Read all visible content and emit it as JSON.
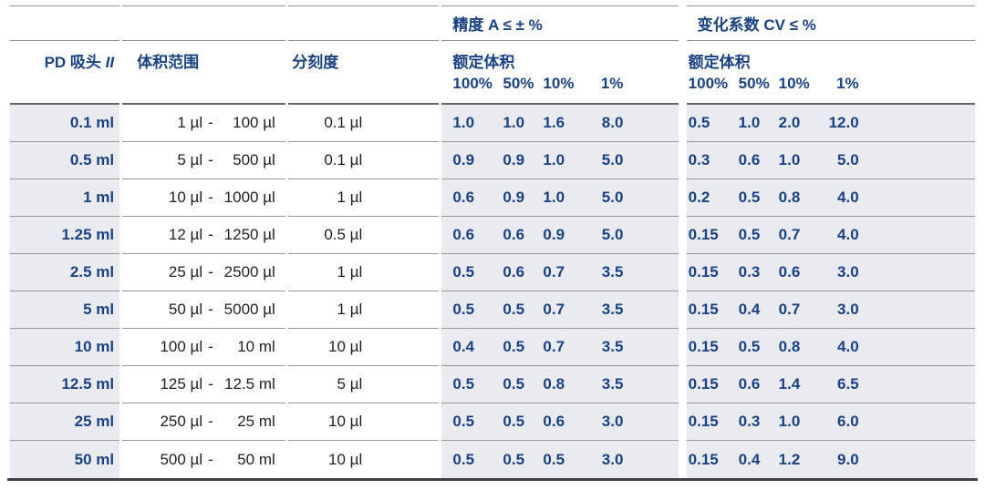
{
  "colors": {
    "navy": "#1a4282",
    "cell_gray": "#e9ebf0",
    "thin_line": "#94979c",
    "header_line": "#63666a",
    "bottom_line": "#3d4044"
  },
  "table": {
    "range_separator": "-",
    "header": {
      "precision_group": "精度 A ≤ ± %",
      "cv_group": "变化系数 CV ≤ %",
      "col_tip": "PD 吸头 ",
      "col_tip_suffix": "II",
      "col_range": "体积范围",
      "col_graduation": "分刻度",
      "rated_volume": "额定体积",
      "percent_labels": [
        "100%",
        "50%",
        "10%",
        "1%"
      ]
    },
    "rows": [
      {
        "tip": "0.1 ml",
        "range_low": "1 µl",
        "range_high": "100 µl",
        "graduation": "0.1 µl",
        "a": [
          "1.0",
          "1.0",
          "1.6",
          "8.0"
        ],
        "cv": [
          "0.5",
          "1.0",
          "2.0",
          "12.0"
        ]
      },
      {
        "tip": "0.5 ml",
        "range_low": "5 µl",
        "range_high": "500 µl",
        "graduation": "0.1 µl",
        "a": [
          "0.9",
          "0.9",
          "1.0",
          "5.0"
        ],
        "cv": [
          "0.3",
          "0.6",
          "1.0",
          "5.0"
        ]
      },
      {
        "tip": "1 ml",
        "range_low": "10 µl",
        "range_high": "1000 µl",
        "graduation": "1 µl",
        "a": [
          "0.6",
          "0.9",
          "1.0",
          "5.0"
        ],
        "cv": [
          "0.2",
          "0.5",
          "0.8",
          "4.0"
        ]
      },
      {
        "tip": "1.25 ml",
        "range_low": "12 µl",
        "range_high": "1250 µl",
        "graduation": "0.5 µl",
        "a": [
          "0.6",
          "0.6",
          "0.9",
          "5.0"
        ],
        "cv": [
          "0.15",
          "0.5",
          "0.7",
          "4.0"
        ]
      },
      {
        "tip": "2.5 ml",
        "range_low": "25 µl",
        "range_high": "2500 µl",
        "graduation": "1 µl",
        "a": [
          "0.5",
          "0.6",
          "0.7",
          "3.5"
        ],
        "cv": [
          "0.15",
          "0.3",
          "0.6",
          "3.0"
        ]
      },
      {
        "tip": "5 ml",
        "range_low": "50 µl",
        "range_high": "5000 µl",
        "graduation": "1 µl",
        "a": [
          "0.5",
          "0.5",
          "0.7",
          "3.5"
        ],
        "cv": [
          "0.15",
          "0.4",
          "0.7",
          "3.0"
        ]
      },
      {
        "tip": "10 ml",
        "range_low": "100 µl",
        "range_high": "10 ml",
        "graduation": "10 µl",
        "a": [
          "0.4",
          "0.5",
          "0.7",
          "3.5"
        ],
        "cv": [
          "0.15",
          "0.5",
          "0.8",
          "4.0"
        ]
      },
      {
        "tip": "12.5 ml",
        "range_low": "125 µl",
        "range_high": "12.5 ml",
        "graduation": "5 µl",
        "a": [
          "0.5",
          "0.5",
          "0.8",
          "3.5"
        ],
        "cv": [
          "0.15",
          "0.6",
          "1.4",
          "6.5"
        ]
      },
      {
        "tip": "25 ml",
        "range_low": "250 µl",
        "range_high": "25 ml",
        "graduation": "10 µl",
        "a": [
          "0.5",
          "0.5",
          "0.6",
          "3.0"
        ],
        "cv": [
          "0.15",
          "0.3",
          "1.0",
          "6.0"
        ]
      },
      {
        "tip": "50 ml",
        "range_low": "500 µl",
        "range_high": "50 ml",
        "graduation": "10 µl",
        "a": [
          "0.5",
          "0.5",
          "0.5",
          "3.0"
        ],
        "cv": [
          "0.15",
          "0.4",
          "1.2",
          "9.0"
        ]
      }
    ]
  }
}
